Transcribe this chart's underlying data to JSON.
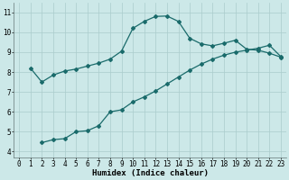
{
  "bg_color": "#cce8e8",
  "grid_color": "#aacccc",
  "line_color": "#1a6b6b",
  "marker": "D",
  "markersize": 2,
  "linewidth": 0.9,
  "xlabel": "Humidex (Indice chaleur)",
  "xlabel_fontsize": 6.5,
  "tick_fontsize": 5.5,
  "xlim": [
    -0.5,
    23.5
  ],
  "ylim": [
    3.7,
    11.5
  ],
  "xticks": [
    0,
    1,
    2,
    3,
    4,
    5,
    6,
    7,
    8,
    9,
    10,
    11,
    12,
    13,
    14,
    15,
    16,
    17,
    18,
    19,
    20,
    21,
    22,
    23
  ],
  "yticks": [
    4,
    5,
    6,
    7,
    8,
    9,
    10,
    11
  ],
  "line1_x": [
    1,
    2,
    3,
    4,
    5,
    6,
    7,
    8,
    9,
    10,
    11,
    12,
    13,
    14,
    15,
    16,
    17,
    18,
    19,
    20,
    21,
    22,
    23
  ],
  "line1_y": [
    8.2,
    7.5,
    7.85,
    8.05,
    8.15,
    8.3,
    8.45,
    8.65,
    9.05,
    10.2,
    10.55,
    10.8,
    10.82,
    10.55,
    9.7,
    9.42,
    9.32,
    9.45,
    9.6,
    9.15,
    9.1,
    8.95,
    8.75
  ],
  "line2_x": [
    2,
    3,
    4,
    5,
    6,
    7,
    8,
    9,
    10,
    11,
    12,
    13,
    14,
    15,
    16,
    17,
    18,
    19,
    20,
    21,
    22,
    23
  ],
  "line2_y": [
    4.45,
    4.6,
    4.65,
    5.0,
    5.05,
    5.3,
    6.0,
    6.1,
    6.5,
    6.75,
    7.05,
    7.4,
    7.75,
    8.1,
    8.4,
    8.65,
    8.85,
    9.0,
    9.1,
    9.2,
    9.35,
    8.78
  ]
}
